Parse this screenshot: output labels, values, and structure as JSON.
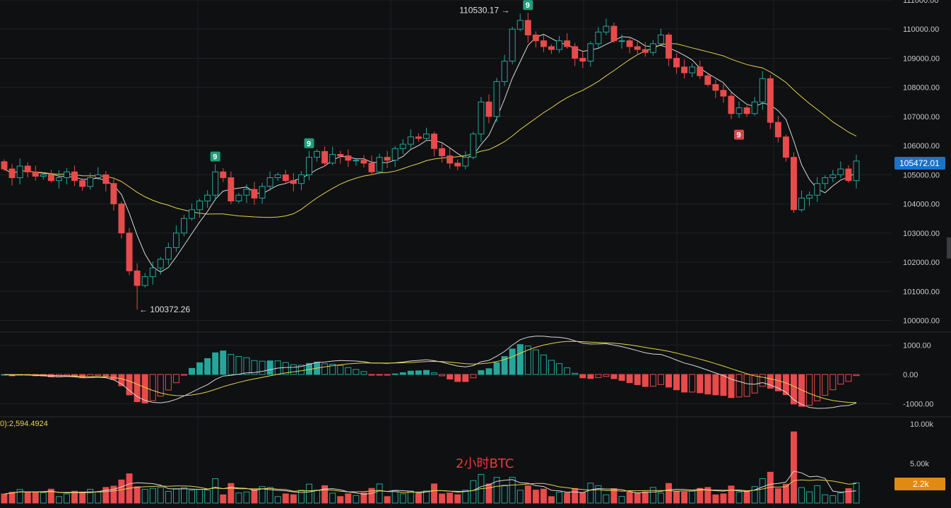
{
  "watermark": "2小时BTC",
  "volume_legend": "0):2,594.4924",
  "colors": {
    "background": "#0f1012",
    "up": "#26a69a",
    "down": "#e84b4b",
    "ma_fast": "#d8d8d8",
    "ma_slow": "#e3d24a",
    "grid": "#1f2124",
    "last_price_bg": "#1a73c9",
    "last_volume_bg": "#e08a14"
  },
  "chart_data": [
    {
      "type": "candlestick",
      "panel": "price",
      "ylim": [
        99600,
        111000
      ],
      "y_ticks": [
        "111000.00",
        "110000.00",
        "109000.00",
        "108000.00",
        "107000.00",
        "106000.00",
        "105000.00",
        "104000.00",
        "103000.00",
        "102000.00",
        "101000.00",
        "100000.00"
      ],
      "last_price": "105472.01",
      "high_annotation": "110530.17 →",
      "low_annotation": "← 100372.26",
      "td_marks": [
        "9",
        "9",
        "9",
        "9"
      ],
      "closes": [
        105200,
        104900,
        105300,
        105100,
        104950,
        105000,
        104800,
        104900,
        105100,
        104800,
        104600,
        104900,
        105000,
        104700,
        104000,
        103000,
        101700,
        101200,
        101500,
        101800,
        102100,
        102500,
        103000,
        103500,
        103800,
        104100,
        104300,
        105100,
        104900,
        104100,
        104300,
        104500,
        104200,
        104600,
        104900,
        105000,
        104800,
        104700,
        105000,
        105600,
        105800,
        105400,
        105700,
        105650,
        105500,
        105500,
        105400,
        105100,
        105600,
        105500,
        105900,
        106050,
        106300,
        106250,
        106400,
        105900,
        105650,
        105400,
        105300,
        105600,
        106400,
        107500,
        107000,
        108200,
        108900,
        110000,
        110300,
        109800,
        109600,
        109400,
        109300,
        109600,
        109400,
        109000,
        108900,
        109500,
        109900,
        110100,
        109600,
        109600,
        109400,
        109300,
        109200,
        109500,
        109800,
        109000,
        108700,
        108500,
        108700,
        108400,
        108100,
        107900,
        107700,
        107100,
        107300,
        107100,
        107500,
        108300,
        106800,
        106300,
        105600,
        103800,
        104200,
        104300,
        104700,
        104900,
        105000,
        105200,
        104800,
        105472
      ],
      "series": [
        {
          "name": "",
          "role": "fast moving average"
        },
        {
          "name": "",
          "role": "slow moving average"
        }
      ]
    },
    {
      "type": "bar",
      "panel": "macd",
      "ylim": [
        -1400,
        1400
      ],
      "y_ticks": [
        "1000.00",
        "0.00",
        "-1000.00"
      ]
    },
    {
      "type": "bar",
      "panel": "volume",
      "ylim": [
        0,
        10000
      ],
      "y_ticks": [
        "10.00k",
        "5.00k"
      ],
      "last_volume": "2.2k"
    }
  ]
}
